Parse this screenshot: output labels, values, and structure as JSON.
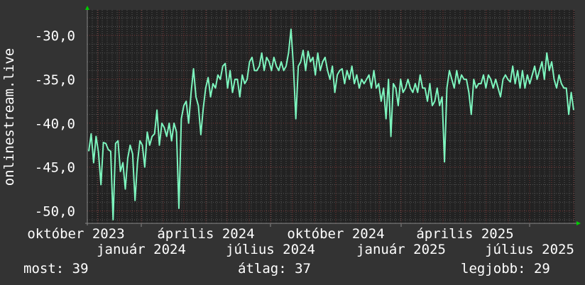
{
  "chart_data": {
    "type": "line",
    "title": "",
    "ylabel": "onlinestream.live",
    "xlabel": "",
    "x_range": [
      "2023-10-17",
      "2025-09-03"
    ],
    "ylim": [
      -51.4,
      -27.1
    ],
    "y_ticks": [
      -30,
      -35,
      -40,
      -45,
      -50
    ],
    "y_tick_labels": [
      "-30,0",
      "-35,0",
      "-40,0",
      "-45,0",
      "-50,0"
    ],
    "x_ticks": [
      {
        "date": "2023-10-01",
        "label": "október 2023"
      },
      {
        "date": "2024-01-01",
        "label": "január 2024"
      },
      {
        "date": "2024-04-01",
        "label": "április 2024"
      },
      {
        "date": "2024-07-01",
        "label": "július 2024"
      },
      {
        "date": "2024-10-01",
        "label": "október 2024"
      },
      {
        "date": "2025-01-01",
        "label": "január 2025"
      },
      {
        "date": "2025-04-01",
        "label": "április 2025"
      },
      {
        "date": "2025-07-01",
        "label": "július 2025"
      }
    ],
    "grid": true,
    "colors": {
      "background": "#333333",
      "plot": "#222222",
      "line": "#7df5be",
      "minor_grid": "#555555",
      "major_grid": "#7a3535",
      "arrow": "#00cc00"
    },
    "series": [
      {
        "values": [
          -43.2,
          -41.2,
          -44.5,
          -41.5,
          -43.3,
          -47,
          -42.2,
          -42.3,
          -43,
          -43.2,
          -51,
          -42.3,
          -42,
          -45.5,
          -44.5,
          -47.5,
          -44,
          -42.5,
          -43.5,
          -48.8,
          -44.5,
          -42,
          -42.5,
          -45,
          -41,
          -42.5,
          -41.5,
          -41.2,
          -38.5,
          -42.5,
          -40,
          -40.5,
          -41.5,
          -40,
          -42,
          -40,
          -41,
          -49.7,
          -39.5,
          -38,
          -37.5,
          -40,
          -36.5,
          -33.8,
          -37,
          -38,
          -41.3,
          -38.3,
          -36,
          -34.8,
          -37,
          -35.5,
          -36,
          -34.5,
          -35,
          -33.5,
          -33.2,
          -36,
          -34,
          -36.5,
          -35,
          -35,
          -37,
          -34.5,
          -35.5,
          -35,
          -33,
          -32.5,
          -34,
          -34,
          -33.5,
          -32,
          -34,
          -32.5,
          -33,
          -34,
          -32.5,
          -33.5,
          -34,
          -33,
          -34,
          -33.5,
          -32,
          -29.3,
          -33.5,
          -39.5,
          -33.5,
          -33,
          -31.7,
          -34,
          -31.8,
          -33,
          -32.5,
          -34.5,
          -32,
          -34,
          -33,
          -32.5,
          -34,
          -35,
          -33.5,
          -36.5,
          -34.5,
          -34,
          -33.8,
          -35.5,
          -34,
          -35,
          -33.5,
          -35.5,
          -34.5,
          -36,
          -35,
          -35.5,
          -35,
          -34.5,
          -36,
          -34,
          -36,
          -35.5,
          -37.5,
          -36,
          -39.5,
          -35,
          -41.5,
          -35.5,
          -36,
          -38,
          -35,
          -36.5,
          -36,
          -35,
          -36,
          -36.5,
          -35.5,
          -36.5,
          -34.5,
          -36,
          -36,
          -37.5,
          -35.5,
          -38,
          -37.5,
          -36,
          -38,
          -37,
          -44.4,
          -36,
          -34,
          -35,
          -36,
          -34,
          -35.5,
          -34.5,
          -35,
          -35,
          -36.5,
          -39,
          -35,
          -36,
          -35.5,
          -35.5,
          -34.5,
          -36,
          -34.5,
          -35,
          -36,
          -35,
          -36,
          -37,
          -35,
          -34.5,
          -35,
          -35.3,
          -33.5,
          -35.5,
          -34,
          -36,
          -34,
          -36,
          -34.5,
          -35.5,
          -34.5,
          -33.5,
          -35,
          -34,
          -33,
          -35,
          -32,
          -34,
          -33,
          -35,
          -36,
          -34.5,
          -35.5,
          -36,
          -36,
          -39,
          -36.5,
          -38.5
        ]
      }
    ]
  },
  "legend": {
    "current": "most: 39",
    "average": "átlag: 37",
    "best": "legjobb: 29"
  }
}
